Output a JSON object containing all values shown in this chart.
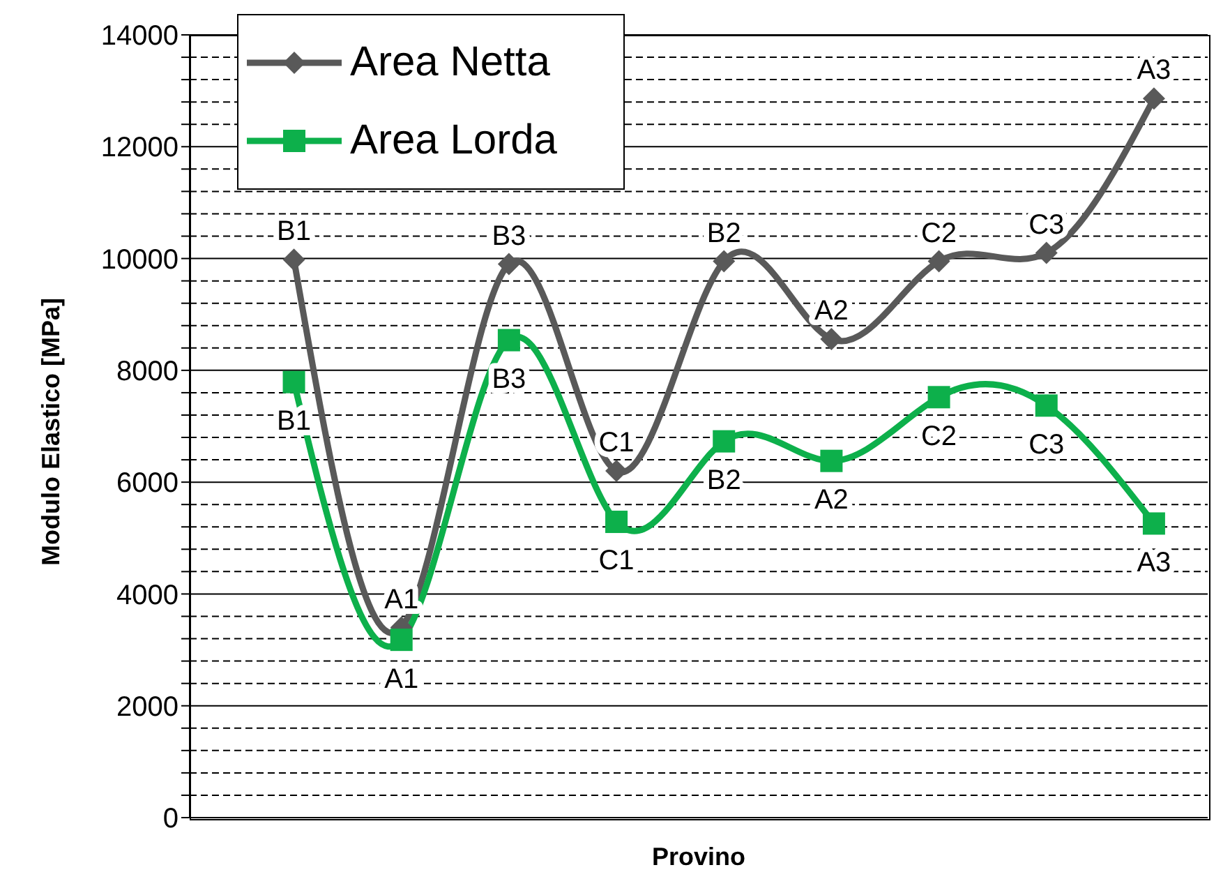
{
  "chart_data": {
    "type": "line",
    "xlabel": "Provino",
    "ylabel": "Modulo Elastico [MPa]",
    "categories": [
      null,
      null,
      null,
      null,
      null,
      null,
      null,
      null,
      null
    ],
    "series": [
      {
        "name": "Area Netta",
        "color": "#595959",
        "marker": "diamond",
        "values": [
          9980,
          3400,
          9900,
          6200,
          9950,
          8560,
          9950,
          10100,
          12860
        ],
        "value_labels": [
          "B1",
          "A1",
          "B3",
          "C1",
          "B2",
          "A2",
          "C2",
          "C3",
          "A3"
        ]
      },
      {
        "name": "Area Lorda",
        "color": "#0db04b",
        "marker": "square",
        "values": [
          7790,
          3180,
          8540,
          5290,
          6730,
          6380,
          7520,
          7370,
          5260
        ],
        "value_labels": [
          "B1",
          "A1",
          "B3",
          "C1",
          "B2",
          "A2",
          "C2",
          "C3",
          "A3"
        ]
      }
    ],
    "ylim": [
      0,
      14000
    ],
    "yticks": [
      0,
      {
        "value": 400,
        "label": null
      },
      {
        "value": 800,
        "label": null
      },
      {
        "value": 1200,
        "label": null
      },
      {
        "value": 1600,
        "label": null
      },
      2000,
      {
        "value": 2400,
        "label": null
      },
      {
        "value": 2800,
        "label": null
      },
      {
        "value": 3200,
        "label": null
      },
      {
        "value": 3600,
        "label": null
      },
      4000,
      {
        "value": 4400,
        "label": null
      },
      {
        "value": 4800,
        "label": null
      },
      {
        "value": 5200,
        "label": null
      },
      {
        "value": 5600,
        "label": null
      },
      6000,
      {
        "value": 6400,
        "label": null
      },
      {
        "value": 6800,
        "label": null
      },
      {
        "value": 7200,
        "label": null
      },
      {
        "value": 7600,
        "label": null
      },
      8000,
      {
        "value": 8400,
        "label": null
      },
      {
        "value": 8800,
        "label": null
      },
      {
        "value": 9200,
        "label": null
      },
      {
        "value": 9600,
        "label": null
      },
      10000,
      {
        "value": 10400,
        "label": null
      },
      {
        "value": 10800,
        "label": null
      },
      {
        "value": 11200,
        "label": null
      },
      {
        "value": 11600,
        "label": null
      },
      12000,
      {
        "value": 12400,
        "label": null
      },
      {
        "value": 12800,
        "label": null
      },
      {
        "value": 13200,
        "label": null
      },
      {
        "value": 13600,
        "label": null
      },
      14000
    ],
    "grid": "y",
    "legend": "top left",
    "tick_labels": "y",
    "line_style": "solid"
  }
}
